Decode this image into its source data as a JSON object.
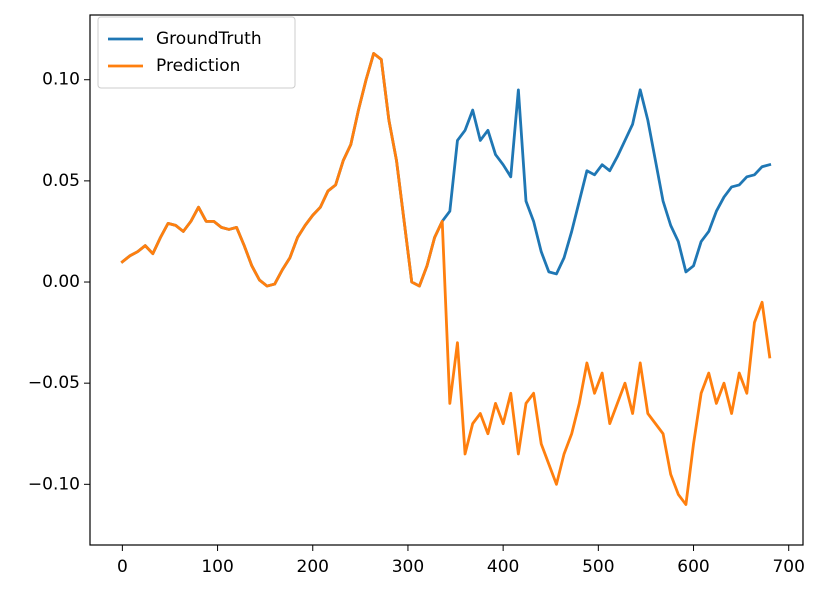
{
  "chart_data": {
    "type": "line",
    "x": [
      0,
      8,
      16,
      24,
      32,
      40,
      48,
      56,
      64,
      72,
      80,
      88,
      96,
      104,
      112,
      120,
      128,
      136,
      144,
      152,
      160,
      168,
      176,
      184,
      192,
      200,
      208,
      216,
      224,
      232,
      240,
      248,
      256,
      264,
      272,
      280,
      288,
      296,
      304,
      312,
      320,
      328,
      336,
      344,
      352,
      360,
      368,
      376,
      384,
      392,
      400,
      408,
      416,
      424,
      432,
      440,
      448,
      456,
      464,
      472,
      480,
      488,
      496,
      504,
      512,
      520,
      528,
      536,
      544,
      552,
      560,
      568,
      576,
      584,
      592,
      600,
      608,
      616,
      624,
      632,
      640,
      648,
      656,
      664,
      672,
      680
    ],
    "series": [
      {
        "name": "GroundTruth",
        "color": "#1f77b4",
        "values": [
          0.01,
          0.013,
          0.015,
          0.018,
          0.014,
          0.022,
          0.029,
          0.028,
          0.025,
          0.03,
          0.037,
          0.03,
          0.03,
          0.027,
          0.026,
          0.027,
          0.018,
          0.008,
          0.001,
          -0.002,
          -0.001,
          0.006,
          0.012,
          0.022,
          0.028,
          0.033,
          0.037,
          0.045,
          0.048,
          0.06,
          0.068,
          0.085,
          0.1,
          0.113,
          0.11,
          0.08,
          0.06,
          0.03,
          0.0,
          -0.002,
          0.008,
          0.022,
          0.03,
          0.035,
          0.07,
          0.075,
          0.085,
          0.07,
          0.075,
          0.063,
          0.058,
          0.052,
          0.095,
          0.04,
          0.03,
          0.015,
          0.005,
          0.004,
          0.012,
          0.025,
          0.04,
          0.055,
          0.053,
          0.058,
          0.055,
          0.062,
          0.07,
          0.078,
          0.095,
          0.08,
          0.06,
          0.04,
          0.028,
          0.02,
          0.005,
          0.008,
          0.02,
          0.025,
          0.035,
          0.042,
          0.047,
          0.048,
          0.052,
          0.053,
          0.057,
          0.058
        ]
      },
      {
        "name": "Prediction",
        "color": "#ff7f0e",
        "values": [
          0.01,
          0.013,
          0.015,
          0.018,
          0.014,
          0.022,
          0.029,
          0.028,
          0.025,
          0.03,
          0.037,
          0.03,
          0.03,
          0.027,
          0.026,
          0.027,
          0.018,
          0.008,
          0.001,
          -0.002,
          -0.001,
          0.006,
          0.012,
          0.022,
          0.028,
          0.033,
          0.037,
          0.045,
          0.048,
          0.06,
          0.068,
          0.085,
          0.1,
          0.113,
          0.11,
          0.08,
          0.06,
          0.03,
          0.0,
          -0.002,
          0.008,
          0.022,
          0.03,
          -0.06,
          -0.03,
          -0.085,
          -0.07,
          -0.065,
          -0.075,
          -0.06,
          -0.07,
          -0.055,
          -0.085,
          -0.06,
          -0.055,
          -0.08,
          -0.09,
          -0.1,
          -0.085,
          -0.075,
          -0.06,
          -0.04,
          -0.055,
          -0.045,
          -0.07,
          -0.06,
          -0.05,
          -0.065,
          -0.04,
          -0.065,
          -0.07,
          -0.075,
          -0.095,
          -0.105,
          -0.11,
          -0.08,
          -0.055,
          -0.045,
          -0.06,
          -0.05,
          -0.065,
          -0.045,
          -0.055,
          -0.02,
          -0.01,
          -0.037
        ]
      }
    ],
    "xlim": [
      -34,
      715
    ],
    "ylim": [
      -0.13,
      0.132
    ],
    "xticks": [
      0,
      100,
      200,
      300,
      400,
      500,
      600,
      700
    ],
    "yticks": [
      {
        "value": -0.1,
        "label": "−0.10"
      },
      {
        "value": -0.05,
        "label": "−0.05"
      },
      {
        "value": 0,
        "label": "0.00"
      },
      0.05,
      {
        "value": 0.1,
        "label": "0.10"
      }
    ],
    "legend": "upper left"
  }
}
